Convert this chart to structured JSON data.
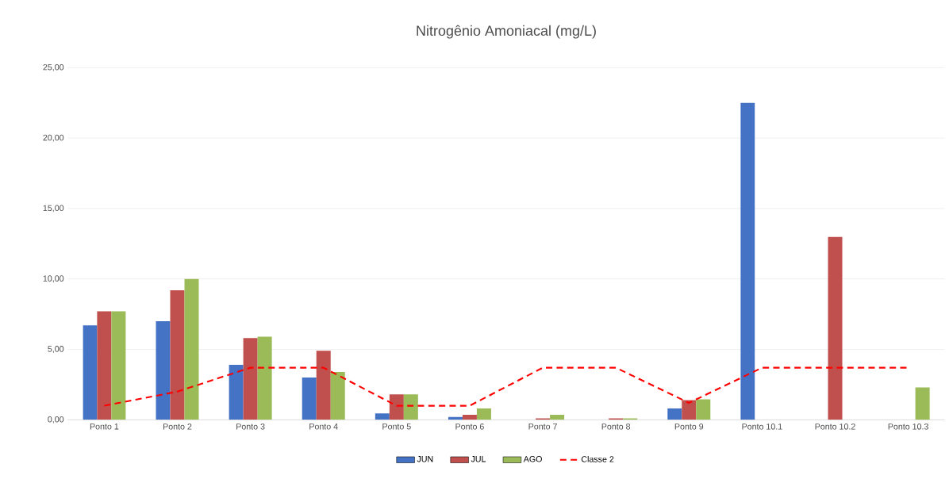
{
  "chart_data": {
    "type": "bar",
    "title": "Nitrogênio Amoniacal (mg/L)",
    "categories": [
      "Ponto 1",
      "Ponto 2",
      "Ponto 3",
      "Ponto 4",
      "Ponto 5",
      "Ponto 6",
      "Ponto 7",
      "Ponto 8",
      "Ponto 9",
      "Ponto 10.1",
      "Ponto 10.2",
      "Ponto 10.3"
    ],
    "series": [
      {
        "name": "JUN",
        "color": "#4472c4",
        "values": [
          6.7,
          7.0,
          3.9,
          3.0,
          0.45,
          0.2,
          null,
          null,
          0.8,
          22.5,
          null,
          null
        ]
      },
      {
        "name": "JUL",
        "color": "#c0504d",
        "values": [
          7.7,
          9.2,
          5.8,
          4.9,
          1.8,
          0.35,
          0.1,
          0.1,
          1.4,
          null,
          13.0,
          null
        ]
      },
      {
        "name": "AGO",
        "color": "#9bbb59",
        "values": [
          7.7,
          10.0,
          5.9,
          3.4,
          1.8,
          0.8,
          0.35,
          0.1,
          1.45,
          null,
          null,
          2.3
        ]
      },
      {
        "name": "Classe 2",
        "type": "line",
        "line_style": "dashed",
        "color": "#ff0000",
        "values": [
          1.0,
          2.0,
          3.7,
          3.7,
          1.0,
          1.0,
          3.7,
          3.7,
          1.2,
          3.7,
          3.7,
          3.7
        ]
      }
    ],
    "ylim": [
      0,
      25
    ],
    "yticks": [
      {
        "value": 0,
        "label": "0,00"
      },
      {
        "value": 5,
        "label": "5,00"
      },
      {
        "value": 10,
        "label": "10,00"
      },
      {
        "value": 15,
        "label": "15,00"
      },
      {
        "value": 20,
        "label": "20,00"
      },
      {
        "value": 25,
        "label": "25,00"
      }
    ],
    "grid": "y",
    "legend": "bottom"
  }
}
